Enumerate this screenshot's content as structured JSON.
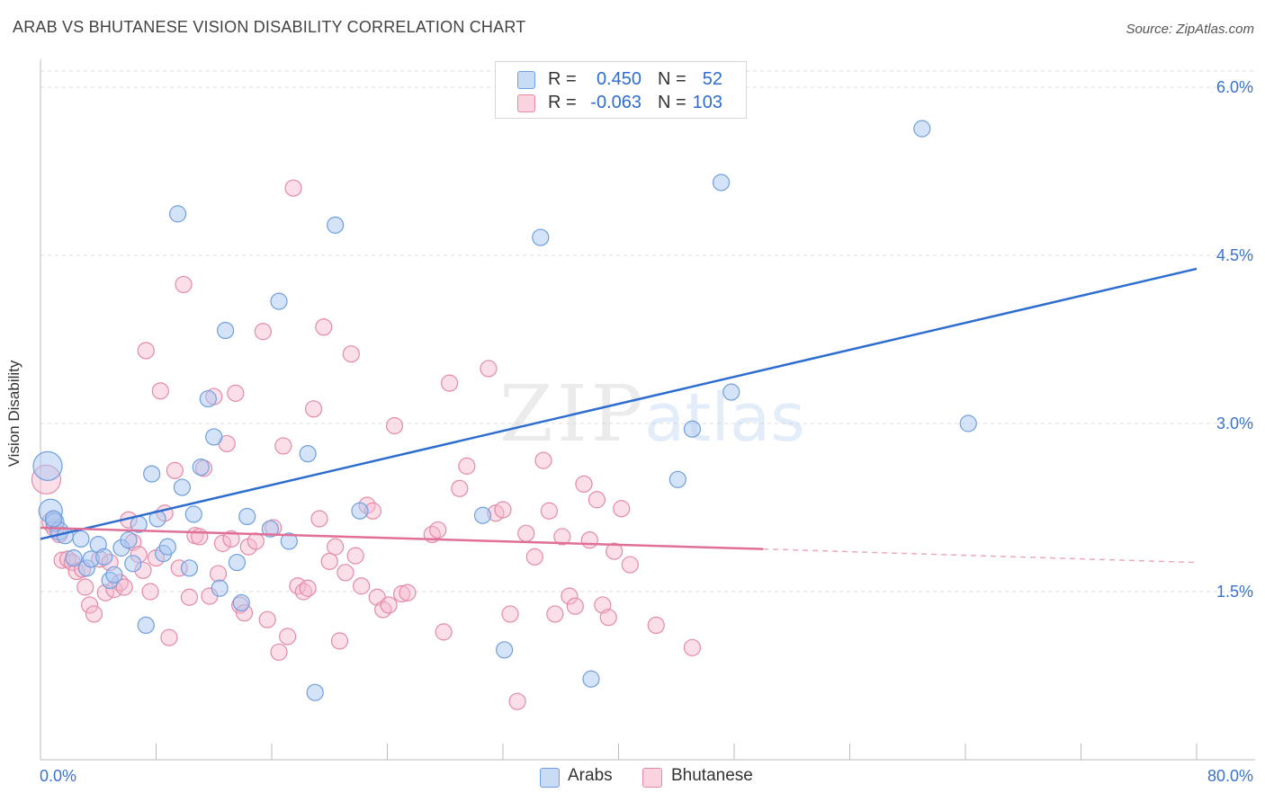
{
  "header": {
    "title": "ARAB VS BHUTANESE VISION DISABILITY CORRELATION CHART",
    "source": "Source: ZipAtlas.com"
  },
  "watermark": {
    "zip": "ZIP",
    "atlas": "atlas"
  },
  "legend_top": {
    "rows": [
      {
        "r_label": "R =",
        "r_value": "0.450",
        "n_label": "N =",
        "n_value": "52",
        "color": "#a9c8f2"
      },
      {
        "r_label": "R =",
        "r_value": "-0.063",
        "n_label": "N =",
        "n_value": "103",
        "color": "#f6b8cb"
      }
    ]
  },
  "legend_bottom": {
    "items": [
      {
        "label": "Arabs",
        "color": "#a9c8f2"
      },
      {
        "label": "Bhutanese",
        "color": "#f6b8cb"
      }
    ]
  },
  "colors": {
    "arabs_fill": "#a9c8f2",
    "arabs_stroke": "#6f9fde",
    "arabs_line": "#2e6dd0",
    "bhutanese_fill": "#f6b8cb",
    "bhutanese_stroke": "#e48aa8",
    "bhutanese_line": "#e07098",
    "grid": "#dddddd",
    "tick_label": "#3a72cf"
  },
  "chart_data": {
    "type": "scatter",
    "title": "ARAB VS BHUTANESE VISION DISABILITY CORRELATION CHART",
    "xlabel": "",
    "ylabel": "Vision Disability",
    "xlim": [
      0,
      80
    ],
    "ylim": [
      0,
      6.3
    ],
    "x_tick_labels": [
      "0.0%",
      "80.0%"
    ],
    "y_ticks": [
      1.5,
      3.0,
      4.5,
      6.0
    ],
    "y_tick_labels": [
      "1.5%",
      "3.0%",
      "4.5%",
      "6.0%"
    ],
    "grid": true,
    "legend_position": "top-center",
    "series": [
      {
        "name": "Arabs",
        "r": 0.45,
        "n": 52,
        "trend": {
          "x": [
            0,
            80
          ],
          "y": [
            1.97,
            4.38
          ]
        },
        "points": [
          [
            0.5,
            2.62,
            16
          ],
          [
            0.7,
            2.22,
            13
          ],
          [
            1.0,
            2.12,
            10
          ],
          [
            1.3,
            2.04,
            10
          ],
          [
            1.7,
            2.0,
            9
          ],
          [
            2.3,
            1.8,
            9
          ],
          [
            2.8,
            1.97,
            9
          ],
          [
            3.2,
            1.71,
            9
          ],
          [
            3.5,
            1.79,
            9
          ],
          [
            4.0,
            1.92,
            9
          ],
          [
            4.4,
            1.81,
            9
          ],
          [
            4.8,
            1.6,
            9
          ],
          [
            5.1,
            1.65,
            9
          ],
          [
            5.6,
            1.89,
            9
          ],
          [
            6.1,
            1.96,
            9
          ],
          [
            6.4,
            1.75,
            9
          ],
          [
            6.8,
            2.1,
            9
          ],
          [
            7.3,
            1.2,
            9
          ],
          [
            7.7,
            2.55,
            9
          ],
          [
            8.1,
            2.15,
            9
          ],
          [
            8.5,
            1.84,
            9
          ],
          [
            8.8,
            1.9,
            9
          ],
          [
            9.5,
            4.87,
            9
          ],
          [
            9.8,
            2.43,
            9
          ],
          [
            10.3,
            1.71,
            9
          ],
          [
            10.6,
            2.19,
            9
          ],
          [
            11.1,
            2.61,
            9
          ],
          [
            11.6,
            3.22,
            9
          ],
          [
            12.0,
            2.88,
            9
          ],
          [
            12.4,
            1.53,
            9
          ],
          [
            12.8,
            3.83,
            9
          ],
          [
            13.6,
            1.76,
            9
          ],
          [
            13.9,
            1.4,
            9
          ],
          [
            14.3,
            2.17,
            9
          ],
          [
            15.9,
            2.06,
            9
          ],
          [
            16.5,
            4.09,
            9
          ],
          [
            17.2,
            1.95,
            9
          ],
          [
            18.5,
            2.73,
            9
          ],
          [
            19.0,
            0.6,
            9
          ],
          [
            20.4,
            4.77,
            9
          ],
          [
            22.1,
            2.22,
            9
          ],
          [
            30.6,
            2.18,
            9
          ],
          [
            32.1,
            0.98,
            9
          ],
          [
            34.6,
            4.66,
            9
          ],
          [
            38.1,
            0.72,
            9
          ],
          [
            44.1,
            2.5,
            9
          ],
          [
            45.1,
            2.95,
            9
          ],
          [
            47.1,
            5.15,
            9
          ],
          [
            47.8,
            3.28,
            9
          ],
          [
            61.0,
            5.63,
            9
          ],
          [
            64.2,
            3.0,
            9
          ],
          [
            0.9,
            2.15,
            9
          ]
        ]
      },
      {
        "name": "Bhutanese",
        "r": -0.063,
        "n": 103,
        "trend": {
          "x": [
            0,
            50
          ],
          "y": [
            2.07,
            1.88
          ]
        },
        "trend_extension": {
          "x": [
            50,
            80
          ],
          "y": [
            1.88,
            1.76
          ]
        },
        "points": [
          [
            0.4,
            2.5,
            16
          ],
          [
            0.8,
            2.12,
            11
          ],
          [
            1.0,
            2.07,
            10
          ],
          [
            1.3,
            2.01,
            9
          ],
          [
            1.5,
            1.78,
            9
          ],
          [
            1.9,
            1.79,
            9
          ],
          [
            2.2,
            1.76,
            9
          ],
          [
            2.5,
            1.68,
            9
          ],
          [
            2.9,
            1.7,
            9
          ],
          [
            3.1,
            1.54,
            9
          ],
          [
            3.4,
            1.38,
            9
          ],
          [
            3.7,
            1.3,
            9
          ],
          [
            4.1,
            1.79,
            9
          ],
          [
            4.5,
            1.49,
            9
          ],
          [
            4.8,
            1.76,
            9
          ],
          [
            5.1,
            1.52,
            9
          ],
          [
            5.5,
            1.58,
            9
          ],
          [
            5.8,
            1.54,
            9
          ],
          [
            6.1,
            2.14,
            9
          ],
          [
            6.4,
            1.94,
            9
          ],
          [
            6.8,
            1.83,
            9
          ],
          [
            7.1,
            1.69,
            9
          ],
          [
            7.3,
            3.65,
            9
          ],
          [
            7.6,
            1.5,
            9
          ],
          [
            8.0,
            1.8,
            9
          ],
          [
            8.3,
            3.29,
            9
          ],
          [
            8.6,
            2.2,
            9
          ],
          [
            8.9,
            1.09,
            9
          ],
          [
            9.3,
            2.58,
            9
          ],
          [
            9.6,
            1.71,
            9
          ],
          [
            9.9,
            4.24,
            9
          ],
          [
            10.3,
            1.45,
            9
          ],
          [
            10.7,
            2.0,
            9
          ],
          [
            11.0,
            1.99,
            9
          ],
          [
            11.3,
            2.6,
            9
          ],
          [
            11.7,
            1.46,
            9
          ],
          [
            12.0,
            3.24,
            9
          ],
          [
            12.3,
            1.66,
            9
          ],
          [
            12.6,
            1.93,
            9
          ],
          [
            12.9,
            2.82,
            9
          ],
          [
            13.2,
            1.97,
            9
          ],
          [
            13.5,
            3.27,
            9
          ],
          [
            13.8,
            1.38,
            9
          ],
          [
            14.1,
            1.31,
            9
          ],
          [
            14.4,
            1.9,
            9
          ],
          [
            14.9,
            1.95,
            9
          ],
          [
            15.4,
            3.82,
            9
          ],
          [
            15.7,
            1.25,
            9
          ],
          [
            16.1,
            2.07,
            9
          ],
          [
            16.5,
            0.96,
            9
          ],
          [
            16.8,
            2.8,
            9
          ],
          [
            17.1,
            1.1,
            9
          ],
          [
            17.5,
            5.1,
            9
          ],
          [
            17.8,
            1.55,
            9
          ],
          [
            18.2,
            1.5,
            9
          ],
          [
            18.5,
            1.53,
            9
          ],
          [
            18.9,
            3.13,
            9
          ],
          [
            19.3,
            2.15,
            9
          ],
          [
            19.6,
            3.86,
            9
          ],
          [
            20.0,
            1.77,
            9
          ],
          [
            20.4,
            1.9,
            9
          ],
          [
            20.7,
            1.06,
            9
          ],
          [
            21.1,
            1.67,
            9
          ],
          [
            21.5,
            3.62,
            9
          ],
          [
            21.8,
            1.82,
            9
          ],
          [
            22.2,
            1.55,
            9
          ],
          [
            22.6,
            2.27,
            9
          ],
          [
            23.0,
            2.22,
            9
          ],
          [
            23.3,
            1.45,
            9
          ],
          [
            23.7,
            1.34,
            9
          ],
          [
            24.1,
            1.38,
            9
          ],
          [
            24.5,
            2.98,
            9
          ],
          [
            25.0,
            1.48,
            9
          ],
          [
            25.4,
            1.49,
            9
          ],
          [
            27.1,
            2.01,
            9
          ],
          [
            27.5,
            2.05,
            9
          ],
          [
            27.9,
            1.14,
            9
          ],
          [
            28.3,
            3.36,
            9
          ],
          [
            29.0,
            2.42,
            9
          ],
          [
            29.5,
            2.62,
            9
          ],
          [
            31.0,
            3.49,
            9
          ],
          [
            31.5,
            2.2,
            9
          ],
          [
            32.0,
            2.23,
            9
          ],
          [
            32.5,
            1.3,
            9
          ],
          [
            33.0,
            0.52,
            9
          ],
          [
            33.6,
            2.02,
            9
          ],
          [
            34.2,
            1.81,
            9
          ],
          [
            34.8,
            2.67,
            9
          ],
          [
            35.2,
            2.22,
            9
          ],
          [
            35.6,
            1.3,
            9
          ],
          [
            36.1,
            1.99,
            9
          ],
          [
            36.6,
            1.46,
            9
          ],
          [
            37.0,
            1.37,
            9
          ],
          [
            37.6,
            2.46,
            9
          ],
          [
            38.0,
            1.96,
            9
          ],
          [
            38.5,
            2.32,
            9
          ],
          [
            38.9,
            1.38,
            9
          ],
          [
            39.3,
            1.27,
            9
          ],
          [
            39.7,
            1.86,
            9
          ],
          [
            40.2,
            2.24,
            9
          ],
          [
            40.8,
            1.74,
            9
          ],
          [
            42.6,
            1.2,
            9
          ],
          [
            45.1,
            1.0,
            9
          ]
        ]
      }
    ]
  }
}
